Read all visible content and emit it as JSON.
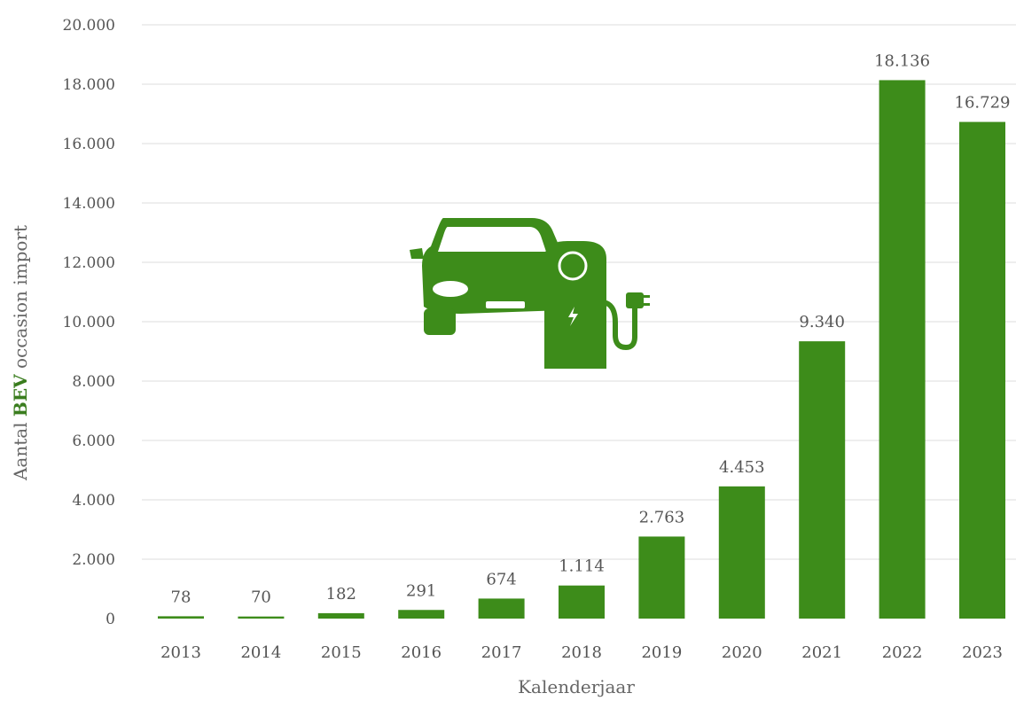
{
  "chart_data": {
    "type": "bar",
    "categories": [
      "2013",
      "2014",
      "2015",
      "2016",
      "2017",
      "2018",
      "2019",
      "2020",
      "2021",
      "2022",
      "2023"
    ],
    "values": [
      78,
      70,
      182,
      291,
      674,
      1114,
      2763,
      4453,
      9340,
      18136,
      16729
    ],
    "value_labels": [
      "78",
      "70",
      "182",
      "291",
      "674",
      "1.114",
      "2.763",
      "4.453",
      "9.340",
      "18.136",
      "16.729"
    ],
    "xlabel": "Kalenderjaar",
    "ylabel": {
      "prefix": "Aantal ",
      "highlight": "BEV",
      "suffix": " occasion import"
    },
    "ylim": [
      0,
      20000
    ],
    "yticks": [
      0,
      2000,
      4000,
      6000,
      8000,
      10000,
      12000,
      14000,
      16000,
      18000,
      20000
    ],
    "ytick_labels": [
      "0",
      "2.000",
      "4.000",
      "6.000",
      "8.000",
      "10.000",
      "12.000",
      "14.000",
      "16.000",
      "18.000",
      "20.000"
    ],
    "grid": true,
    "colors": {
      "bar": "#3d8c1a",
      "highlight": "#3a7d1e"
    },
    "icon": "electric-car-charging-icon"
  }
}
